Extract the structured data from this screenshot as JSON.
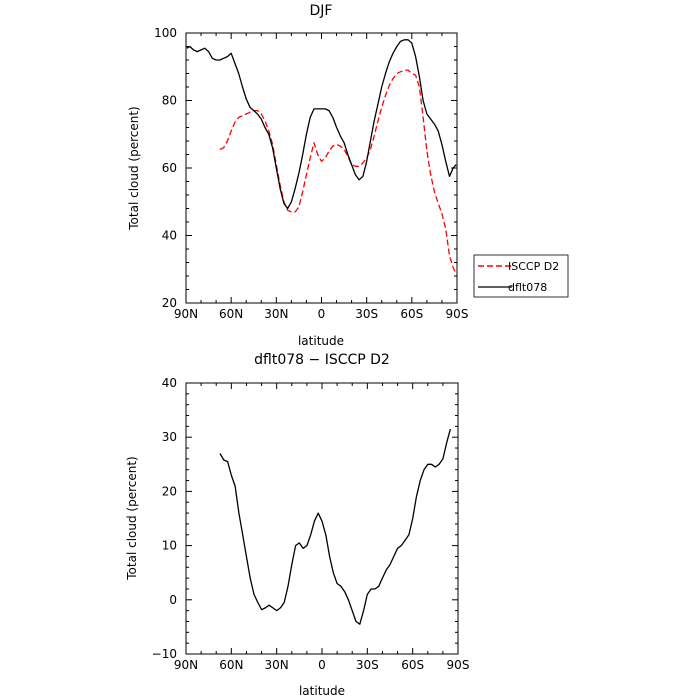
{
  "chart_data": [
    {
      "type": "line",
      "title": "DJF",
      "xlabel": "latitude",
      "ylabel": "Total cloud (percent)",
      "xlim": [
        90,
        -90
      ],
      "ylim": [
        20,
        100
      ],
      "x_ticks": [
        90,
        60,
        30,
        0,
        -30,
        -60,
        -90
      ],
      "x_tick_labels": [
        "90N",
        "60N",
        "30N",
        "0",
        "30S",
        "60S",
        "90S"
      ],
      "y_ticks": [
        20,
        40,
        60,
        80,
        100
      ],
      "y_tick_labels": [
        "20",
        "40",
        "60",
        "80",
        "100"
      ],
      "legend_position": "right",
      "series": [
        {
          "name": "ISCCP D2",
          "color": "#ff0000",
          "dash": "dashed",
          "points": [
            [
              67.5,
              65.5
            ],
            [
              65,
              66
            ],
            [
              62.5,
              68
            ],
            [
              60,
              71
            ],
            [
              57.5,
              73.5
            ],
            [
              55,
              75
            ],
            [
              52.5,
              75.5
            ],
            [
              50,
              76
            ],
            [
              47.5,
              76.5
            ],
            [
              45,
              77
            ],
            [
              42.5,
              77
            ],
            [
              40,
              76
            ],
            [
              37.5,
              74
            ],
            [
              35,
              71
            ],
            [
              32.5,
              67
            ],
            [
              30,
              61
            ],
            [
              27.5,
              55
            ],
            [
              25,
              50
            ],
            [
              22.5,
              47.5
            ],
            [
              20,
              47
            ],
            [
              17.5,
              47
            ],
            [
              15,
              48.5
            ],
            [
              12.5,
              53
            ],
            [
              10,
              58
            ],
            [
              7.5,
              63
            ],
            [
              5,
              67.5
            ],
            [
              2.5,
              64
            ],
            [
              0,
              62
            ],
            [
              -2.5,
              63
            ],
            [
              -5,
              65
            ],
            [
              -7.5,
              66.5
            ],
            [
              -10,
              67
            ],
            [
              -12.5,
              66.5
            ],
            [
              -15,
              65.5
            ],
            [
              -17.5,
              63.5
            ],
            [
              -20,
              61
            ],
            [
              -22.5,
              60.5
            ],
            [
              -25,
              60.5
            ],
            [
              -27.5,
              61.5
            ],
            [
              -30,
              63
            ],
            [
              -32.5,
              65.5
            ],
            [
              -35,
              69.5
            ],
            [
              -37.5,
              74
            ],
            [
              -40,
              78
            ],
            [
              -42.5,
              81.5
            ],
            [
              -45,
              84.5
            ],
            [
              -47.5,
              86.5
            ],
            [
              -50,
              88
            ],
            [
              -52.5,
              88.5
            ],
            [
              -55,
              89
            ],
            [
              -57.5,
              89
            ],
            [
              -60,
              88
            ],
            [
              -62.5,
              87.5
            ],
            [
              -65,
              84
            ],
            [
              -67.5,
              75
            ],
            [
              -70,
              65
            ],
            [
              -72.5,
              58
            ],
            [
              -75,
              53
            ],
            [
              -77.5,
              49.5
            ],
            [
              -80,
              46.5
            ],
            [
              -82.5,
              42
            ],
            [
              -85,
              34
            ],
            [
              -87.5,
              30.5
            ],
            [
              -89.5,
              28.5
            ]
          ]
        },
        {
          "name": "dflt078",
          "color": "#000000",
          "dash": "solid",
          "points": [
            [
              89.5,
              95.5
            ],
            [
              87.5,
              96
            ],
            [
              85,
              95
            ],
            [
              82.5,
              94.5
            ],
            [
              80,
              95
            ],
            [
              77.5,
              95.5
            ],
            [
              75,
              94.5
            ],
            [
              72.5,
              92.5
            ],
            [
              70,
              92
            ],
            [
              67.5,
              92
            ],
            [
              65,
              92.5
            ],
            [
              62.5,
              93
            ],
            [
              60,
              94
            ],
            [
              57.5,
              91
            ],
            [
              55,
              88
            ],
            [
              52.5,
              84
            ],
            [
              50,
              80.5
            ],
            [
              47.5,
              78
            ],
            [
              45,
              77
            ],
            [
              42.5,
              76
            ],
            [
              40,
              74.5
            ],
            [
              37.5,
              72
            ],
            [
              35,
              70
            ],
            [
              32.5,
              66
            ],
            [
              30,
              60
            ],
            [
              27.5,
              54
            ],
            [
              25,
              49.5
            ],
            [
              22.5,
              48
            ],
            [
              20,
              50
            ],
            [
              17.5,
              54
            ],
            [
              15,
              58.5
            ],
            [
              12.5,
              64
            ],
            [
              10,
              70
            ],
            [
              7.5,
              75
            ],
            [
              5,
              77.5
            ],
            [
              2.5,
              77.5
            ],
            [
              0,
              77.5
            ],
            [
              -2.5,
              77.5
            ],
            [
              -5,
              77
            ],
            [
              -7.5,
              75
            ],
            [
              -10,
              72
            ],
            [
              -12.5,
              69.5
            ],
            [
              -15,
              67.5
            ],
            [
              -17.5,
              64
            ],
            [
              -20,
              61
            ],
            [
              -22.5,
              58
            ],
            [
              -25,
              56.5
            ],
            [
              -27.5,
              57.5
            ],
            [
              -30,
              62
            ],
            [
              -32.5,
              68
            ],
            [
              -35,
              74
            ],
            [
              -37.5,
              79
            ],
            [
              -40,
              84
            ],
            [
              -42.5,
              88
            ],
            [
              -45,
              91.5
            ],
            [
              -47.5,
              94
            ],
            [
              -50,
              96
            ],
            [
              -52.5,
              97.5
            ],
            [
              -55,
              98
            ],
            [
              -57.5,
              98
            ],
            [
              -60,
              97
            ],
            [
              -62.5,
              93
            ],
            [
              -65,
              87
            ],
            [
              -67.5,
              80
            ],
            [
              -70,
              76
            ],
            [
              -72.5,
              74.5
            ],
            [
              -75,
              73
            ],
            [
              -77.5,
              71
            ],
            [
              -80,
              67
            ],
            [
              -82.5,
              62
            ],
            [
              -85,
              57.5
            ],
            [
              -87.5,
              60
            ],
            [
              -89.5,
              61
            ]
          ]
        }
      ]
    },
    {
      "type": "line",
      "title": "dflt078 − ISCCP D2",
      "xlabel": "latitude",
      "ylabel": "Total cloud (percent)",
      "xlim": [
        90,
        -90
      ],
      "ylim": [
        -10,
        40
      ],
      "x_ticks": [
        90,
        60,
        30,
        0,
        -30,
        -60,
        -90
      ],
      "x_tick_labels": [
        "90N",
        "60N",
        "30N",
        "0",
        "30S",
        "60S",
        "90S"
      ],
      "y_ticks": [
        -10,
        0,
        10,
        20,
        30,
        40
      ],
      "y_tick_labels": [
        "−10",
        "0",
        "10",
        "20",
        "30",
        "40"
      ],
      "series": [
        {
          "color": "#000000",
          "dash": "solid",
          "points": [
            [
              67.5,
              27
            ],
            [
              65,
              25.8
            ],
            [
              62.5,
              25.5
            ],
            [
              60,
              23
            ],
            [
              57.5,
              21
            ],
            [
              55,
              16
            ],
            [
              52.5,
              12
            ],
            [
              50,
              8
            ],
            [
              47.5,
              4
            ],
            [
              45,
              1
            ],
            [
              42.5,
              -0.5
            ],
            [
              40,
              -1.8
            ],
            [
              37.5,
              -1.5
            ],
            [
              35,
              -1
            ],
            [
              32.5,
              -1.5
            ],
            [
              30,
              -2
            ],
            [
              27.5,
              -1.5
            ],
            [
              25,
              -0.5
            ],
            [
              22.5,
              2.5
            ],
            [
              20,
              6.5
            ],
            [
              17.5,
              10
            ],
            [
              15,
              10.5
            ],
            [
              12.5,
              9.5
            ],
            [
              10,
              10
            ],
            [
              7.5,
              12
            ],
            [
              5,
              14.5
            ],
            [
              2.5,
              16
            ],
            [
              0,
              14.5
            ],
            [
              -2.5,
              12
            ],
            [
              -5,
              8
            ],
            [
              -7.5,
              5
            ],
            [
              -10,
              3
            ],
            [
              -12.5,
              2.5
            ],
            [
              -15,
              1.5
            ],
            [
              -17.5,
              0
            ],
            [
              -20,
              -2
            ],
            [
              -22.5,
              -4
            ],
            [
              -25,
              -4.5
            ],
            [
              -27.5,
              -2
            ],
            [
              -30,
              1
            ],
            [
              -32.5,
              2
            ],
            [
              -35,
              2
            ],
            [
              -37.5,
              2.5
            ],
            [
              -40,
              4
            ],
            [
              -42.5,
              5.5
            ],
            [
              -45,
              6.5
            ],
            [
              -47.5,
              8
            ],
            [
              -50,
              9.5
            ],
            [
              -52.5,
              10
            ],
            [
              -55,
              11
            ],
            [
              -57.5,
              12
            ],
            [
              -60,
              15
            ],
            [
              -62.5,
              19
            ],
            [
              -65,
              22
            ],
            [
              -67.5,
              24
            ],
            [
              -70,
              25
            ],
            [
              -72.5,
              25
            ],
            [
              -75,
              24.5
            ],
            [
              -77.5,
              25
            ],
            [
              -80,
              26
            ],
            [
              -82.5,
              29
            ],
            [
              -85,
              31.5
            ]
          ]
        }
      ]
    }
  ]
}
